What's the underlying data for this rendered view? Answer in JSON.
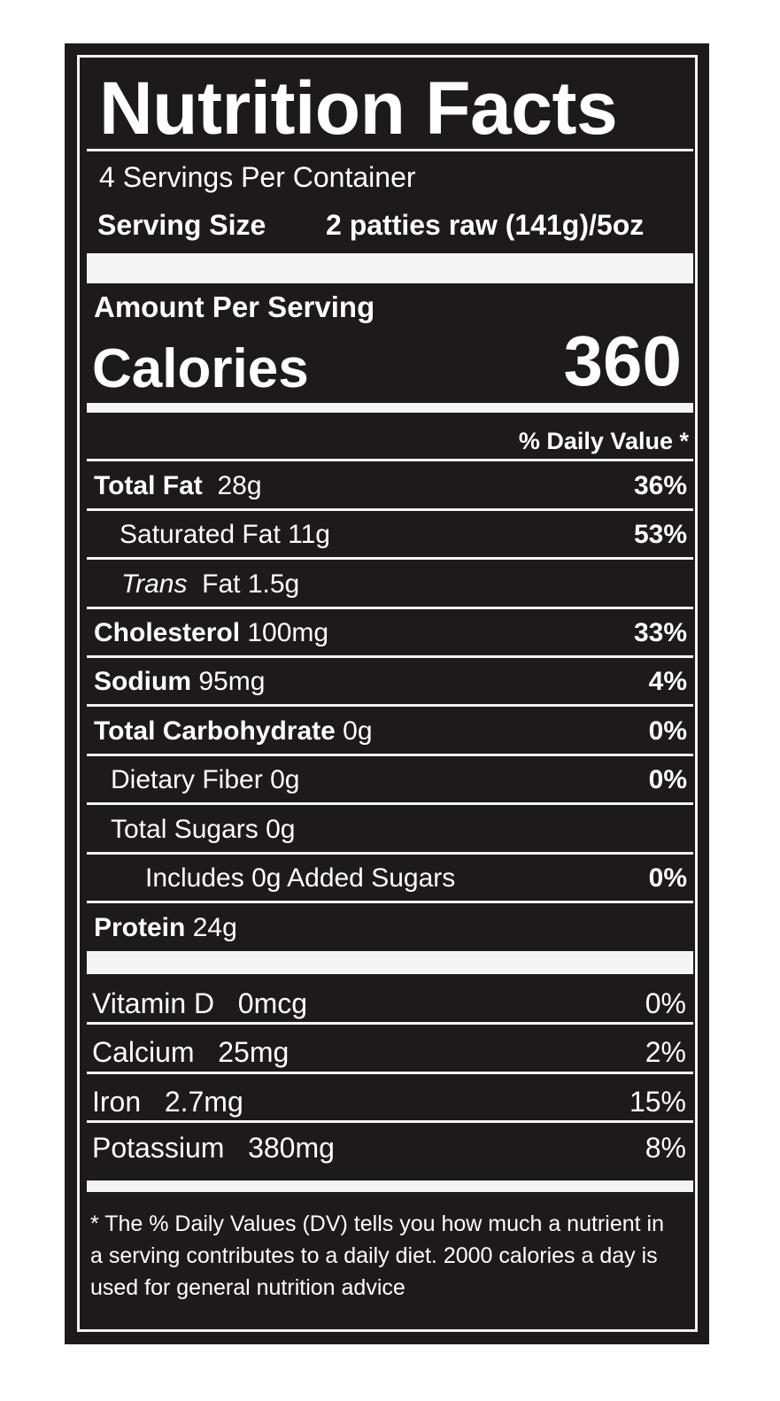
{
  "label": {
    "title": "Nutrition Facts",
    "servings_per_container": "4 Servings Per Container",
    "serving_size_label": "Serving Size",
    "serving_size_value": "2 patties raw (141g)/5oz",
    "amount_per_serving": "Amount Per Serving",
    "calories_label": "Calories",
    "calories_value": "360",
    "daily_value_header": "% Daily Value *",
    "nutrients": [
      {
        "name": "Total Fat",
        "amount": "28g",
        "dv": "36%"
      },
      {
        "name": "Saturated Fat",
        "amount": "11g",
        "dv": "53%"
      },
      {
        "name_italic": "Trans",
        "name": "Fat",
        "amount": "1.5g",
        "dv": ""
      },
      {
        "name": "Cholesterol",
        "amount": "100mg",
        "dv": "33%"
      },
      {
        "name": "Sodium",
        "amount": "95mg",
        "dv": "4%"
      },
      {
        "name": "Total Carbohydrate",
        "amount": "0g",
        "dv": "0%"
      },
      {
        "name": "Dietary Fiber",
        "amount": "0g",
        "dv": "0%"
      },
      {
        "name": "Total Sugars",
        "amount": "0g",
        "dv": ""
      },
      {
        "name": "Includes 0g Added Sugars",
        "amount": "",
        "dv": "0%"
      },
      {
        "name": "Protein",
        "amount": "24g",
        "dv": ""
      }
    ],
    "vitamins": [
      {
        "name": "Vitamin D",
        "amount": "0mcg",
        "dv": "0%"
      },
      {
        "name": "Calcium",
        "amount": "25mg",
        "dv": "2%"
      },
      {
        "name": "Iron",
        "amount": "2.7mg",
        "dv": "15%"
      },
      {
        "name": "Potassium",
        "amount": "380mg",
        "dv": "8%"
      }
    ],
    "footnote": "* The % Daily Values (DV) tells you how much a nutrient in a serving contributes to a daily diet. 2000 calories a day is used for general nutrition advice"
  },
  "colors": {
    "background": "#1d1a1b",
    "text_and_rules": "#f4f4f4"
  }
}
